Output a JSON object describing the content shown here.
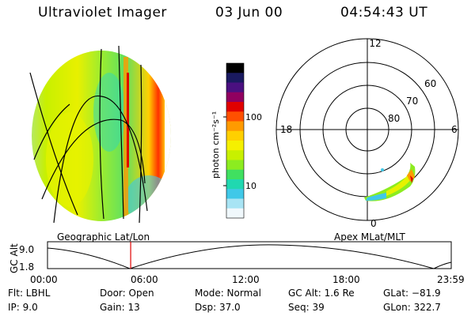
{
  "header": {
    "title": "Ultraviolet Imager",
    "date": "03 Jun 00",
    "time": "04:54:43 UT"
  },
  "colorbar": {
    "label": "photon cm⁻²s⁻¹",
    "ticks": [
      "100",
      "10"
    ],
    "colors": [
      "#000000",
      "#1a1a60",
      "#4a1080",
      "#900060",
      "#e00000",
      "#ff5000",
      "#ff9a00",
      "#ffd000",
      "#f5f000",
      "#c8f000",
      "#8cec20",
      "#40e060",
      "#20d8b0",
      "#40c8e8",
      "#a8e4f4",
      "#f0f8fc"
    ]
  },
  "polar": {
    "labels": {
      "top": "12",
      "left": "18",
      "right": "6",
      "bottom": "0"
    },
    "lat_labels": [
      "60",
      "70",
      "80"
    ]
  },
  "timeline": {
    "left_label": "Geographic Lat/Lon",
    "right_label": "Apex MLat/MLT",
    "y_axis_label": "GC Alt",
    "y_ticks": [
      "9.0",
      "1.8"
    ],
    "x_ticks": [
      "00:00",
      "06:00",
      "12:00",
      "18:00",
      "23:59"
    ],
    "current_time_fraction": 0.206
  },
  "info": {
    "flt": "Flt: LBHL",
    "ip": "IP:  9.0",
    "door": "Door: Open",
    "gain": "Gain: 13",
    "mode": "Mode: Normal",
    "dsp": "Dsp:    37.0",
    "gcalt": "GC Alt: 1.6 Re",
    "seq": "Seq: 39",
    "glat": "GLat: −81.9",
    "glon": "GLon: 322.7"
  }
}
